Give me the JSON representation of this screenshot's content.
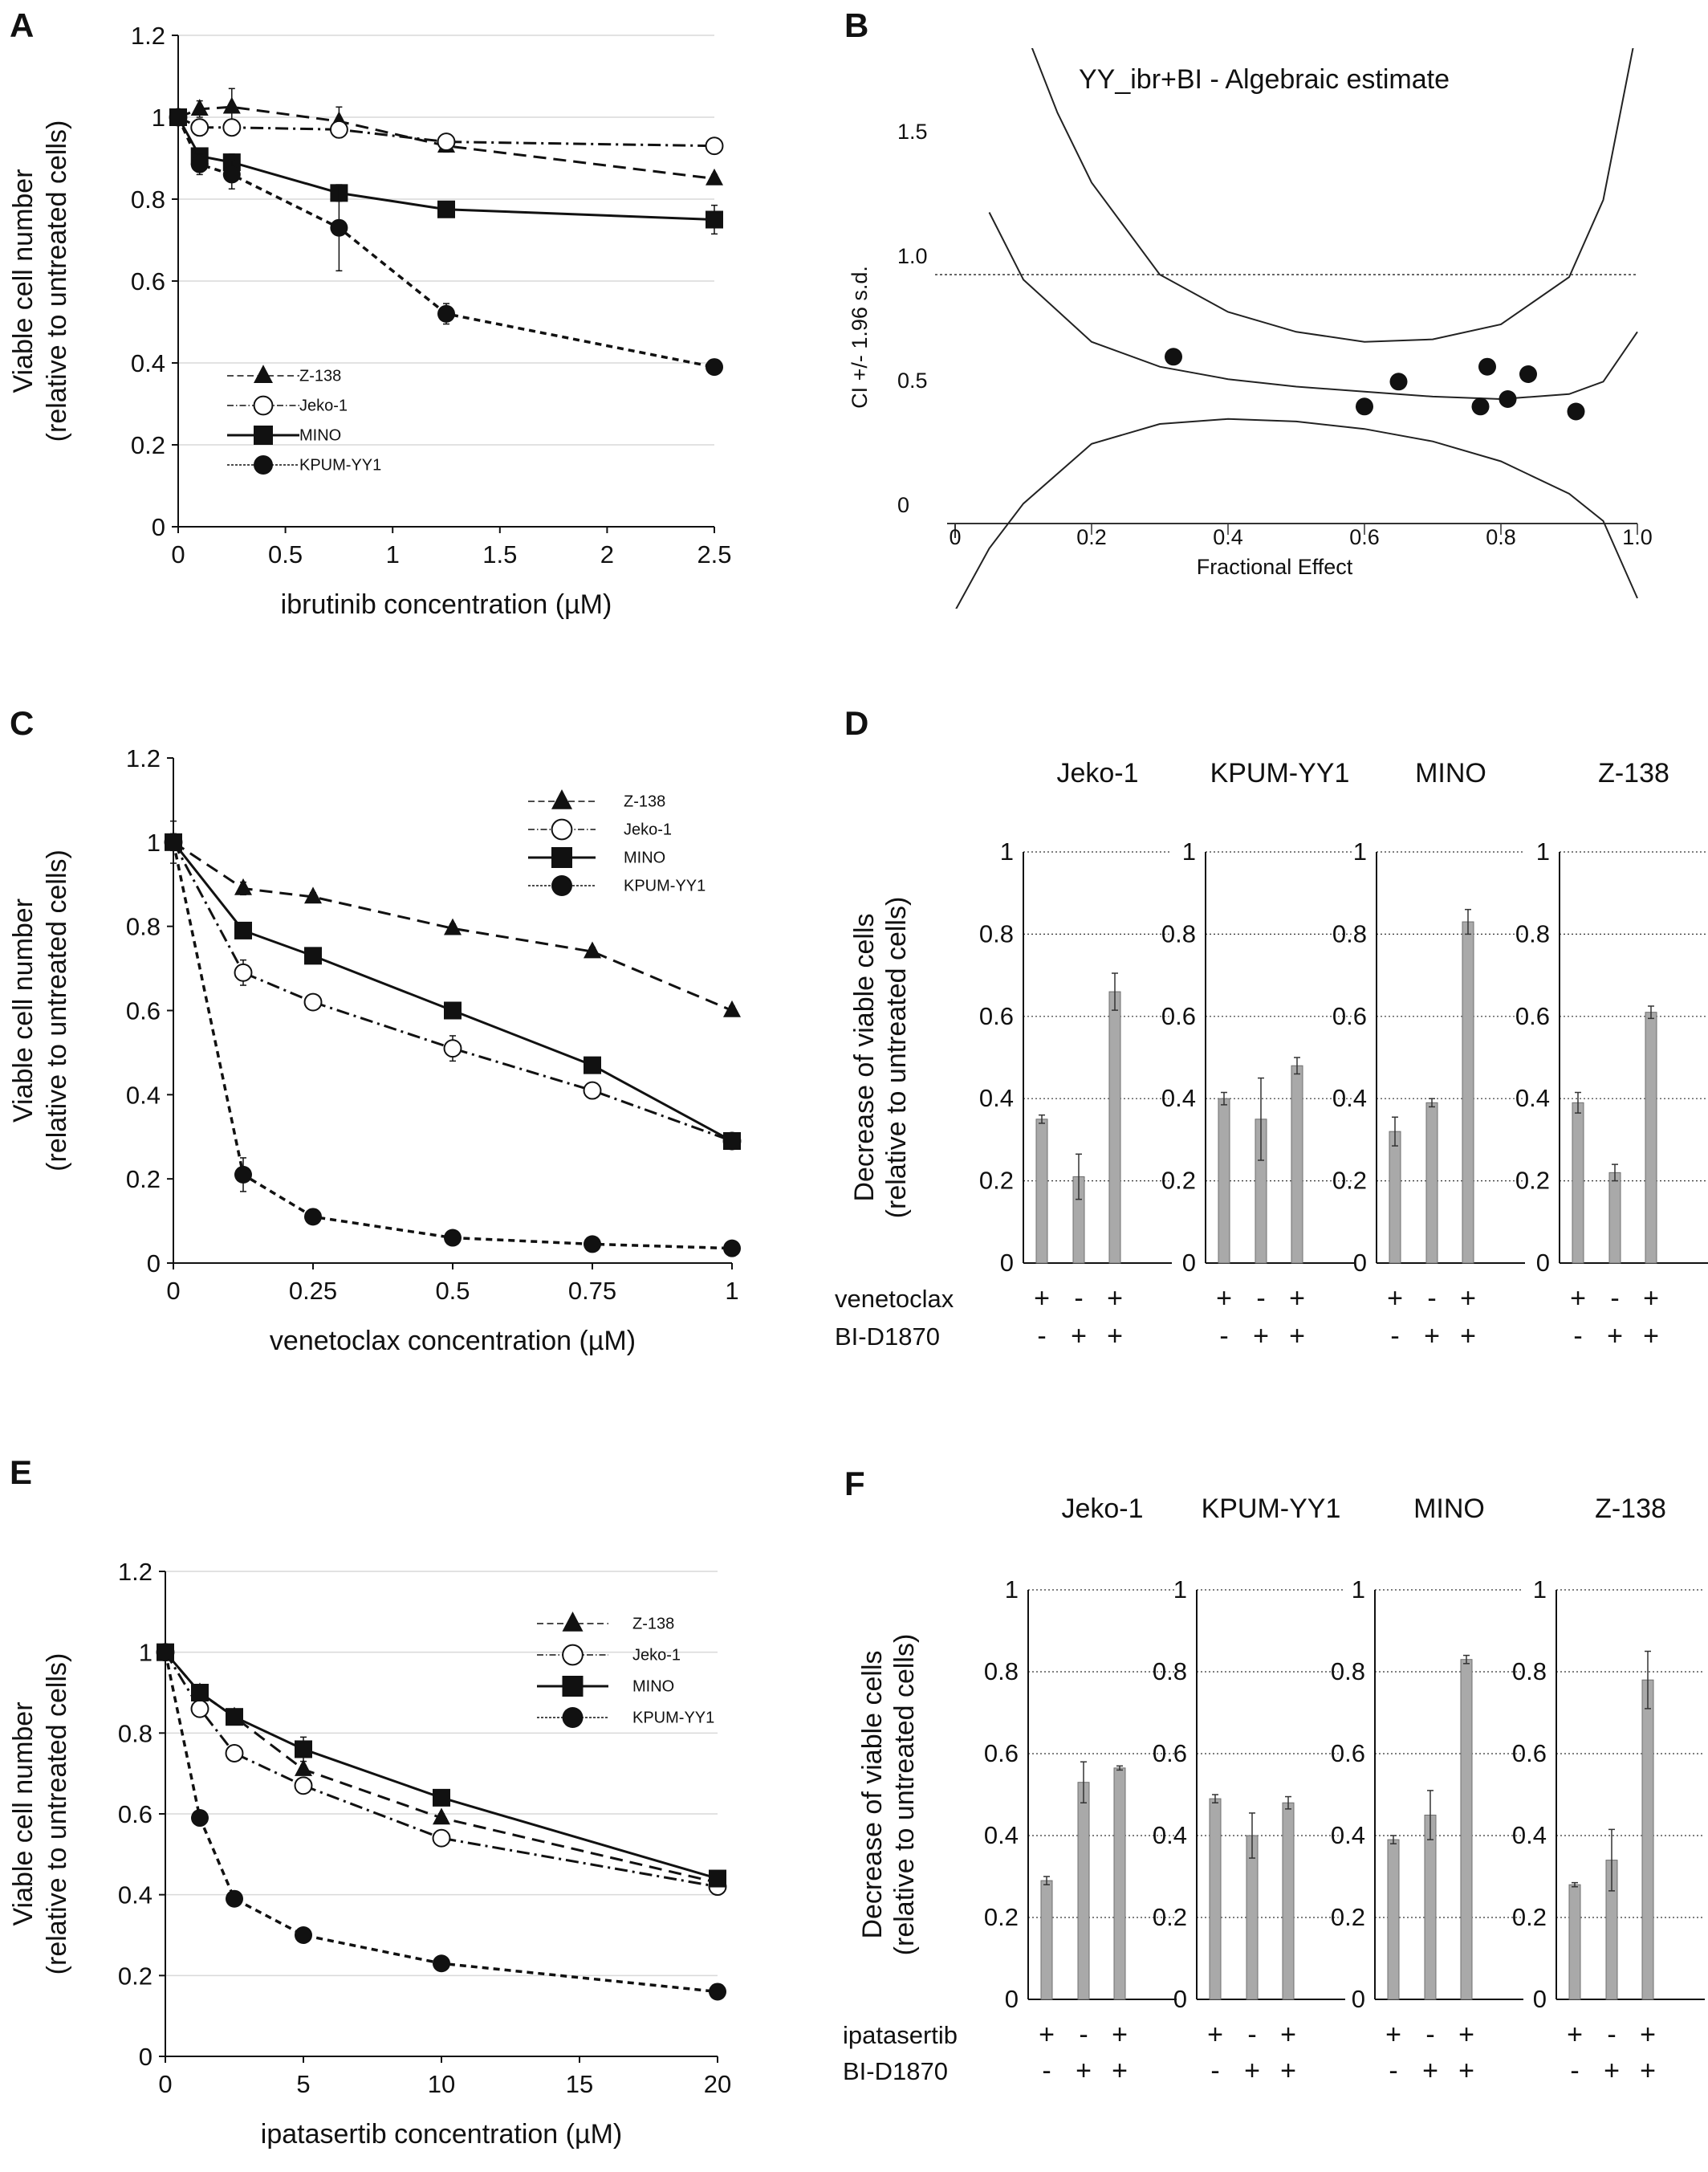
{
  "panels": [
    "A",
    "B",
    "C",
    "D",
    "E",
    "F"
  ],
  "colors": {
    "bar": "#a9a9a9",
    "ink": "#111111",
    "grid": "#d9d9d9"
  },
  "chart_data": [
    {
      "id": "A",
      "type": "line",
      "xlabel": "ibrutinib concentration (µM)",
      "ylabel": [
        "Viable cell number",
        "(relative to untreated cells)"
      ],
      "xlim": [
        0,
        2.5
      ],
      "ylim": [
        0,
        1.2
      ],
      "xticks": [
        "0",
        "0.5",
        "1",
        "1.5",
        "2",
        "2.5"
      ],
      "yticks": [
        "0",
        "0.2",
        "0.4",
        "0.6",
        "0.8",
        "1",
        "1.2"
      ],
      "grid": "horizontal",
      "legend": "bottom-left",
      "series": [
        {
          "name": "Z-138",
          "marker": "triangle",
          "dash": "long",
          "x": [
            0,
            0.1,
            0.25,
            0.75,
            1.25,
            2.5
          ],
          "y": [
            1.0,
            1.02,
            1.025,
            0.99,
            0.93,
            0.85
          ],
          "err": [
            0.02,
            0.02,
            0.045,
            0.035,
            0.015,
            0.01
          ]
        },
        {
          "name": "Jeko-1",
          "marker": "open-circle",
          "dash": "dashdot",
          "x": [
            0,
            0.1,
            0.25,
            0.75,
            1.25,
            2.5
          ],
          "y": [
            1.0,
            0.975,
            0.975,
            0.97,
            0.94,
            0.93
          ],
          "err": [
            0.01,
            0.02,
            0.015,
            0.02,
            0.01,
            0.01
          ]
        },
        {
          "name": "MINO",
          "marker": "square",
          "dash": "solid",
          "x": [
            0,
            0.1,
            0.25,
            0.75,
            1.25,
            2.5
          ],
          "y": [
            1.0,
            0.905,
            0.89,
            0.815,
            0.775,
            0.75
          ],
          "err": [
            0.01,
            0.02,
            0.02,
            0.02,
            0.01,
            0.035
          ]
        },
        {
          "name": "KPUM-YY1",
          "marker": "filled-circle",
          "dash": "short",
          "x": [
            0,
            0.1,
            0.25,
            0.75,
            1.25,
            2.5
          ],
          "y": [
            1.0,
            0.885,
            0.86,
            0.73,
            0.52,
            0.39
          ],
          "err": [
            0.01,
            0.025,
            0.035,
            0.105,
            0.025,
            0.01
          ]
        }
      ]
    },
    {
      "id": "B",
      "type": "scatter",
      "title": "YY_ibr+BI - Algebraic estimate",
      "xlabel": "Fractional Effect",
      "ylabel": "CI +/- 1.96 s.d.",
      "xlim": [
        0,
        1.0
      ],
      "ylim": [
        0,
        1.5
      ],
      "xticks": [
        "0",
        "0.2",
        "0.4",
        "0.6",
        "0.8",
        "1.0"
      ],
      "yticks": [
        "0",
        "0.5",
        "1.0",
        "1.5"
      ],
      "reference_line": 1.0,
      "points": [
        [
          0.32,
          0.67
        ],
        [
          0.6,
          0.47
        ],
        [
          0.65,
          0.57
        ],
        [
          0.77,
          0.47
        ],
        [
          0.78,
          0.63
        ],
        [
          0.81,
          0.5
        ],
        [
          0.84,
          0.6
        ],
        [
          0.91,
          0.45
        ]
      ],
      "curves": {
        "central": [
          [
            0.05,
            1.25
          ],
          [
            0.1,
            0.98
          ],
          [
            0.2,
            0.73
          ],
          [
            0.3,
            0.63
          ],
          [
            0.4,
            0.58
          ],
          [
            0.5,
            0.55
          ],
          [
            0.6,
            0.53
          ],
          [
            0.7,
            0.51
          ],
          [
            0.8,
            0.5
          ],
          [
            0.9,
            0.52
          ],
          [
            0.95,
            0.57
          ],
          [
            1.0,
            0.77
          ]
        ],
        "upper": [
          [
            0.1,
            2.0
          ],
          [
            0.15,
            1.65
          ],
          [
            0.2,
            1.37
          ],
          [
            0.3,
            1.0
          ],
          [
            0.4,
            0.85
          ],
          [
            0.5,
            0.77
          ],
          [
            0.6,
            0.73
          ],
          [
            0.7,
            0.74
          ],
          [
            0.8,
            0.8
          ],
          [
            0.9,
            0.99
          ],
          [
            0.95,
            1.3
          ],
          [
            1.0,
            2.0
          ]
        ],
        "lower": [
          [
            0.0,
            -0.35
          ],
          [
            0.05,
            -0.1
          ],
          [
            0.1,
            0.08
          ],
          [
            0.2,
            0.32
          ],
          [
            0.3,
            0.4
          ],
          [
            0.4,
            0.42
          ],
          [
            0.5,
            0.41
          ],
          [
            0.6,
            0.38
          ],
          [
            0.7,
            0.33
          ],
          [
            0.8,
            0.25
          ],
          [
            0.9,
            0.12
          ],
          [
            0.95,
            0.01
          ],
          [
            1.0,
            -0.3
          ]
        ]
      }
    },
    {
      "id": "C",
      "type": "line",
      "xlabel": "venetoclax concentration (µM)",
      "ylabel": [
        "Viable cell number",
        "(relative to untreated cells)"
      ],
      "xlim": [
        0,
        1
      ],
      "ylim": [
        0,
        1.2
      ],
      "xticks": [
        "0",
        "0.25",
        "0.5",
        "0.75",
        "1"
      ],
      "yticks": [
        "0",
        "0.2",
        "0.4",
        "0.6",
        "0.8",
        "1",
        "1.2"
      ],
      "grid": "none",
      "legend": "top-right",
      "series": [
        {
          "name": "Z-138",
          "marker": "triangle",
          "dash": "long",
          "x": [
            0,
            0.125,
            0.25,
            0.5,
            0.75,
            1
          ],
          "y": [
            1.0,
            0.89,
            0.87,
            0.795,
            0.74,
            0.6
          ],
          "err": [
            0.05,
            0.015,
            0.01,
            0.01,
            0.01,
            0.01
          ]
        },
        {
          "name": "Jeko-1",
          "marker": "open-circle",
          "dash": "dashdot",
          "x": [
            0,
            0.125,
            0.25,
            0.5,
            0.75,
            1
          ],
          "y": [
            1.0,
            0.69,
            0.62,
            0.51,
            0.41,
            0.29
          ],
          "err": [
            0.01,
            0.03,
            0.01,
            0.03,
            0.015,
            0.01
          ]
        },
        {
          "name": "MINO",
          "marker": "square",
          "dash": "solid",
          "x": [
            0,
            0.125,
            0.25,
            0.5,
            0.75,
            1
          ],
          "y": [
            1.0,
            0.79,
            0.73,
            0.6,
            0.47,
            0.29
          ],
          "err": [
            0.01,
            0.01,
            0.01,
            0.01,
            0.01,
            0.01
          ]
        },
        {
          "name": "KPUM-YY1",
          "marker": "filled-circle",
          "dash": "short",
          "x": [
            0,
            0.125,
            0.25,
            0.5,
            0.75,
            1
          ],
          "y": [
            1.0,
            0.21,
            0.11,
            0.06,
            0.045,
            0.035
          ],
          "err": [
            0.02,
            0.04,
            0.01,
            0.01,
            0.005,
            0.005
          ]
        }
      ]
    },
    {
      "id": "D",
      "type": "bar",
      "ylabel": [
        "Decrease of viable cells",
        "(relative to untreated cells)"
      ],
      "ylim": [
        0,
        1
      ],
      "yticks": [
        "0",
        "0.2",
        "0.4",
        "0.6",
        "0.8",
        "1"
      ],
      "treatments": [
        "venetoclax",
        "BI-D1870"
      ],
      "signs": [
        [
          "+",
          "-",
          "+"
        ],
        [
          "-",
          "+",
          "+"
        ]
      ],
      "groups": [
        {
          "name": "Jeko-1",
          "values": [
            0.35,
            0.21,
            0.66
          ],
          "err": [
            0.01,
            0.055,
            0.045
          ]
        },
        {
          "name": "KPUM-YY1",
          "values": [
            0.4,
            0.35,
            0.48
          ],
          "err": [
            0.015,
            0.1,
            0.02
          ]
        },
        {
          "name": "MINO",
          "values": [
            0.32,
            0.39,
            0.83
          ],
          "err": [
            0.035,
            0.01,
            0.03
          ]
        },
        {
          "name": "Z-138",
          "values": [
            0.39,
            0.22,
            0.61
          ],
          "err": [
            0.025,
            0.02,
            0.015
          ]
        }
      ]
    },
    {
      "id": "E",
      "type": "line",
      "xlabel": "ipatasertib concentration (µM)",
      "ylabel": [
        "Viable cell number",
        "(relative to untreated cells)"
      ],
      "xlim": [
        0,
        20
      ],
      "ylim": [
        0,
        1.2
      ],
      "xticks": [
        "0",
        "5",
        "10",
        "15",
        "20"
      ],
      "yticks": [
        "0",
        "0.2",
        "0.4",
        "0.6",
        "0.8",
        "1",
        "1.2"
      ],
      "grid": "horizontal",
      "legend": "top-right",
      "series": [
        {
          "name": "Z-138",
          "marker": "triangle",
          "dash": "long",
          "x": [
            0,
            1.25,
            2.5,
            5,
            10,
            20
          ],
          "y": [
            1.0,
            0.9,
            0.84,
            0.71,
            0.59,
            0.43
          ],
          "err": [
            0.01,
            0.01,
            0.01,
            0.01,
            0.01,
            0.01
          ]
        },
        {
          "name": "Jeko-1",
          "marker": "open-circle",
          "dash": "dashdot",
          "x": [
            0,
            1.25,
            2.5,
            5,
            10,
            20
          ],
          "y": [
            1.0,
            0.86,
            0.75,
            0.67,
            0.54,
            0.42
          ],
          "err": [
            0.01,
            0.01,
            0.01,
            0.01,
            0.01,
            0.01
          ]
        },
        {
          "name": "MINO",
          "marker": "square",
          "dash": "solid",
          "x": [
            0,
            1.25,
            2.5,
            5,
            10,
            20
          ],
          "y": [
            1.0,
            0.9,
            0.84,
            0.76,
            0.64,
            0.44
          ],
          "err": [
            0.01,
            0.01,
            0.01,
            0.03,
            0.01,
            0.01
          ]
        },
        {
          "name": "KPUM-YY1",
          "marker": "filled-circle",
          "dash": "short",
          "x": [
            0,
            1.25,
            2.5,
            5,
            10,
            20
          ],
          "y": [
            1.0,
            0.59,
            0.39,
            0.3,
            0.23,
            0.16
          ],
          "err": [
            0.01,
            0.01,
            0.01,
            0.01,
            0.01,
            0.01
          ]
        }
      ]
    },
    {
      "id": "F",
      "type": "bar",
      "ylabel": [
        "Decrease of viable cells",
        "(relative to untreated cells)"
      ],
      "ylim": [
        0,
        1
      ],
      "yticks": [
        "0",
        "0.2",
        "0.4",
        "0.6",
        "0.8",
        "1"
      ],
      "treatments": [
        "ipatasertib",
        "BI-D1870"
      ],
      "signs": [
        [
          "+",
          "-",
          "+"
        ],
        [
          "-",
          "+",
          "+"
        ]
      ],
      "groups": [
        {
          "name": "Jeko-1",
          "values": [
            0.29,
            0.53,
            0.565
          ],
          "err": [
            0.01,
            0.05,
            0.005
          ]
        },
        {
          "name": "KPUM-YY1",
          "values": [
            0.49,
            0.4,
            0.48
          ],
          "err": [
            0.01,
            0.055,
            0.015
          ]
        },
        {
          "name": "MINO",
          "values": [
            0.39,
            0.45,
            0.83
          ],
          "err": [
            0.01,
            0.06,
            0.01
          ]
        },
        {
          "name": "Z-138",
          "values": [
            0.28,
            0.34,
            0.78
          ],
          "err": [
            0.005,
            0.075,
            0.07
          ]
        }
      ]
    }
  ]
}
